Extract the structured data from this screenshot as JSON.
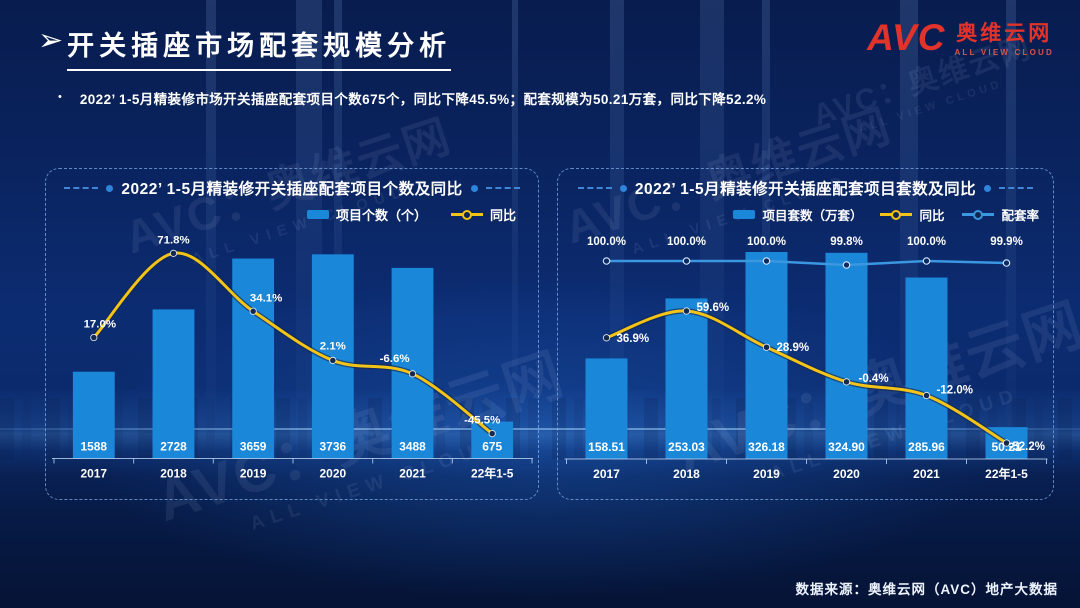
{
  "slide": {
    "title": "开关插座市场配套规模分析",
    "title_arrow": "➢",
    "bullet_marker": "•",
    "bullet": "2022’ 1-5月精装修市场开关插座配套项目个数675个，同比下降45.5%；配套规模为50.21万套，同比下降52.2%",
    "footer": "数据来源：奥维云网（AVC）地产大数据"
  },
  "logo": {
    "avc": "AVC",
    "cn": "奥维云网",
    "en": "ALL VIEW CLOUD"
  },
  "watermark": {
    "line1": "AVC：奥维云网",
    "line2": "ALL VIEW CLOUD"
  },
  "colors": {
    "bar": "#1b87d9",
    "yoy_line": "#f3c317",
    "rate_line": "#3a97e0",
    "label_text": "#ffffff",
    "axis": "#bdd7f5",
    "logo_red": "#e2332a",
    "panel_border": "#84b0ec"
  },
  "chart_data": [
    {
      "type": "bar",
      "title": "2022’ 1-5月精装修开关插座配套项目个数及同比",
      "categories": [
        "2017",
        "2018",
        "2019",
        "2020",
        "2021",
        "22年1-5"
      ],
      "ylim": [
        0,
        4000
      ],
      "grid": false,
      "legend_position": "top-right",
      "series": [
        {
          "name": "项目个数（个）",
          "kind": "bar",
          "values": [
            1588,
            2728,
            3659,
            3736,
            3488,
            675
          ],
          "labels": [
            "1588",
            "2728",
            "3659",
            "3736",
            "3488",
            "675"
          ]
        },
        {
          "name": "同比",
          "kind": "line",
          "values_pct": [
            17.0,
            71.8,
            34.1,
            2.1,
            -6.6,
            -45.5
          ],
          "labels": [
            "17.0%",
            "71.8%",
            "34.1%",
            "2.1%",
            "-6.6%",
            "-45.5%"
          ]
        }
      ]
    },
    {
      "type": "bar",
      "title": "2022’ 1-5月精装修开关插座配套项目套数及同比",
      "categories": [
        "2017",
        "2018",
        "2019",
        "2020",
        "2021",
        "22年1-5"
      ],
      "ylim": [
        0,
        350
      ],
      "grid": false,
      "legend_position": "top-right",
      "series": [
        {
          "name": "项目套数（万套）",
          "kind": "bar",
          "values": [
            158.51,
            253.03,
            326.18,
            324.9,
            285.96,
            50.21
          ],
          "labels": [
            "158.51",
            "253.03",
            "326.18",
            "324.90",
            "285.96",
            "50.21"
          ]
        },
        {
          "name": "同比",
          "kind": "line",
          "values_pct": [
            36.9,
            59.6,
            28.9,
            -0.4,
            -12.0,
            -52.2
          ],
          "labels": [
            "36.9%",
            "59.6%",
            "28.9%",
            "-0.4%",
            "-12.0%",
            "-52.2%"
          ]
        },
        {
          "name": "配套率",
          "kind": "line",
          "values_pct": [
            100.0,
            100.0,
            100.0,
            99.8,
            100.0,
            99.9
          ],
          "labels": [
            "100.0%",
            "100.0%",
            "100.0%",
            "99.8%",
            "100.0%",
            "99.9%"
          ]
        }
      ]
    }
  ]
}
